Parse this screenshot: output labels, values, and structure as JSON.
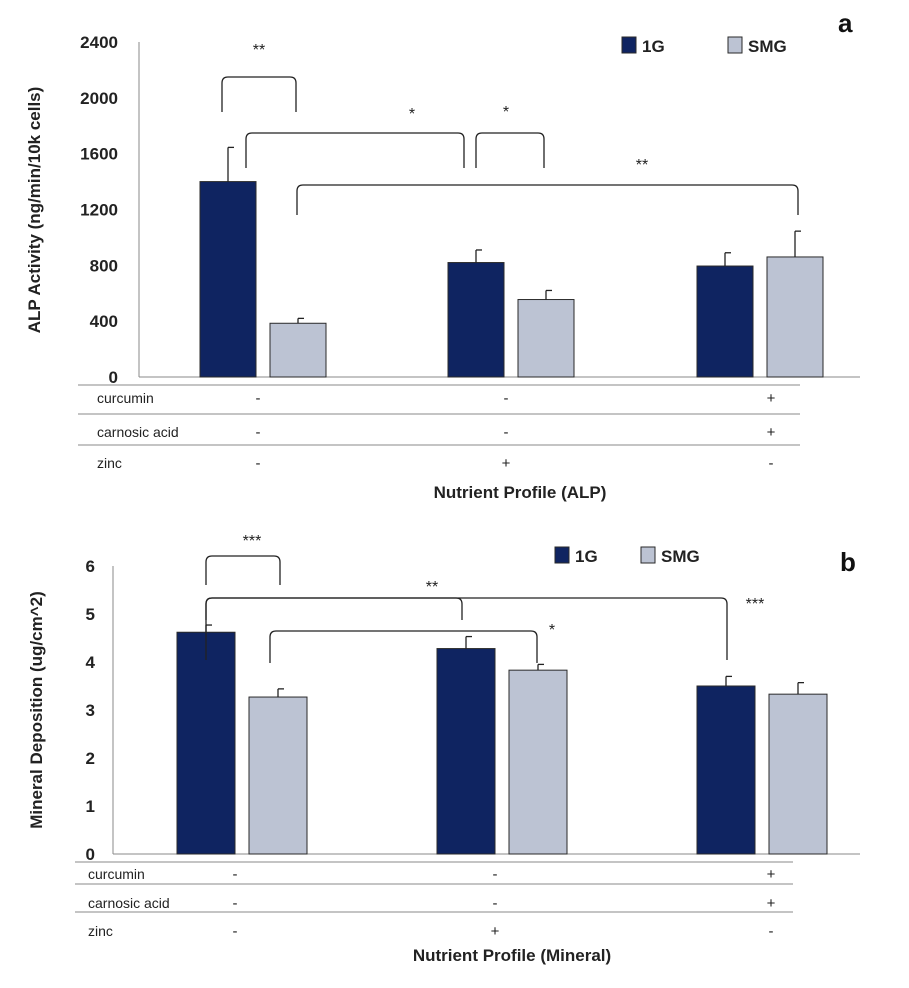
{
  "chart_data": [
    {
      "type": "bar",
      "panel": "a",
      "ylabel": "ALP Activity  (ng/min/10k cells)",
      "xlabel": "Nutrient Profile (ALP)",
      "ylim": [
        0,
        2400
      ],
      "yticks": [
        0,
        400,
        800,
        1200,
        1600,
        2000,
        2400
      ],
      "yticklabels": [
        "0",
        "400",
        "800",
        "1200",
        "1600",
        "2000",
        "2400"
      ],
      "legend": [
        "1G",
        "SMG"
      ],
      "legend_position": "top-right",
      "colors": {
        "1G": "#0f2461",
        "SMG": "#bcc3d3"
      },
      "groups": 3,
      "series": [
        {
          "name": "1G",
          "values": [
            1400,
            820,
            795
          ],
          "errors": [
            245,
            90,
            95
          ]
        },
        {
          "name": "SMG",
          "values": [
            385,
            555,
            860
          ],
          "errors": [
            35,
            65,
            185
          ]
        }
      ],
      "conditions": [
        {
          "label": "curcumin",
          "values": [
            "-",
            "-",
            "+"
          ]
        },
        {
          "label": "carnosic acid",
          "values": [
            "-",
            "-",
            "+"
          ]
        },
        {
          "label": "zinc",
          "values": [
            "-",
            "+",
            "-"
          ]
        }
      ],
      "significance": [
        {
          "from": [
            0,
            "1G"
          ],
          "to": [
            0,
            "SMG"
          ],
          "label": "**"
        },
        {
          "from": [
            0,
            "1G"
          ],
          "to": [
            1,
            "1G"
          ],
          "label": "*"
        },
        {
          "from": [
            1,
            "1G"
          ],
          "to": [
            1,
            "SMG"
          ],
          "label": "*"
        },
        {
          "from": [
            0,
            "SMG"
          ],
          "to": [
            2,
            "SMG"
          ],
          "label": "**"
        }
      ]
    },
    {
      "type": "bar",
      "panel": "b",
      "ylabel": "Mineral Deposition (ug/cm^2)",
      "xlabel": "Nutrient Profile (Mineral)",
      "ylim": [
        0,
        6
      ],
      "yticks": [
        0,
        1,
        2,
        3,
        4,
        5,
        6
      ],
      "yticklabels": [
        "0",
        "1",
        "2",
        "3",
        "4",
        "5",
        "6"
      ],
      "legend": [
        "1G",
        "SMG"
      ],
      "legend_position": "top-right",
      "colors": {
        "1G": "#0f2461",
        "SMG": "#bcc3d3"
      },
      "groups": 3,
      "series": [
        {
          "name": "1G",
          "values": [
            4.62,
            4.28,
            3.5
          ],
          "errors": [
            0.15,
            0.25,
            0.2
          ]
        },
        {
          "name": "SMG",
          "values": [
            3.27,
            3.83,
            3.33
          ],
          "errors": [
            0.17,
            0.12,
            0.24
          ]
        }
      ],
      "conditions": [
        {
          "label": "curcumin",
          "values": [
            "-",
            "-",
            "+"
          ]
        },
        {
          "label": "carnosic acid",
          "values": [
            "-",
            "-",
            "+"
          ]
        },
        {
          "label": "zinc",
          "values": [
            "-",
            "+",
            "-"
          ]
        }
      ],
      "significance": [
        {
          "from": [
            0,
            "1G"
          ],
          "to": [
            0,
            "SMG"
          ],
          "label": "***"
        },
        {
          "from": [
            0,
            "1G"
          ],
          "to": [
            1,
            "1G"
          ],
          "label": "**"
        },
        {
          "from": [
            0,
            "SMG"
          ],
          "to": [
            1,
            "SMG"
          ],
          "label": "*"
        },
        {
          "from": [
            0,
            "1G"
          ],
          "to": [
            2,
            "1G"
          ],
          "label": "***"
        }
      ]
    }
  ]
}
